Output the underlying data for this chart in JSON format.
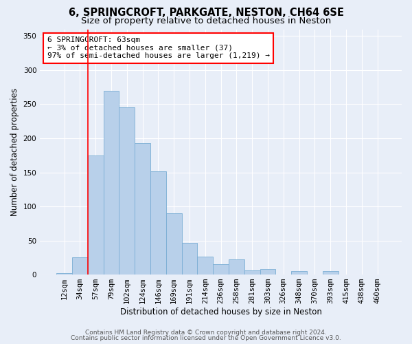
{
  "title1": "6, SPRINGCROFT, PARKGATE, NESTON, CH64 6SE",
  "title2": "Size of property relative to detached houses in Neston",
  "xlabel": "Distribution of detached houses by size in Neston",
  "ylabel": "Number of detached properties",
  "annotation_title": "6 SPRINGCROFT: 63sqm",
  "annotation_line1": "← 3% of detached houses are smaller (37)",
  "annotation_line2": "97% of semi-detached houses are larger (1,219) →",
  "footer1": "Contains HM Land Registry data © Crown copyright and database right 2024.",
  "footer2": "Contains public sector information licensed under the Open Government Licence v3.0.",
  "bar_labels": [
    "12sqm",
    "34sqm",
    "57sqm",
    "79sqm",
    "102sqm",
    "124sqm",
    "146sqm",
    "169sqm",
    "191sqm",
    "214sqm",
    "236sqm",
    "258sqm",
    "281sqm",
    "303sqm",
    "326sqm",
    "348sqm",
    "370sqm",
    "393sqm",
    "415sqm",
    "438sqm",
    "460sqm"
  ],
  "bar_values": [
    2,
    25,
    175,
    270,
    245,
    193,
    152,
    90,
    47,
    26,
    15,
    22,
    6,
    8,
    0,
    5,
    0,
    5,
    0,
    0,
    0
  ],
  "bar_color": "#b8d0ea",
  "bar_edge_color": "#7aadd4",
  "marker_index": 2,
  "marker_color": "red",
  "ylim": [
    0,
    360
  ],
  "yticks": [
    0,
    50,
    100,
    150,
    200,
    250,
    300,
    350
  ],
  "background_color": "#e8eef8",
  "grid_color": "#ffffff",
  "annotation_box_facecolor": "#ffffff",
  "annotation_box_edgecolor": "red",
  "title1_fontsize": 10.5,
  "title2_fontsize": 9.5,
  "axis_label_fontsize": 8.5,
  "tick_fontsize": 7.5,
  "annotation_fontsize": 8,
  "footer_fontsize": 6.5
}
